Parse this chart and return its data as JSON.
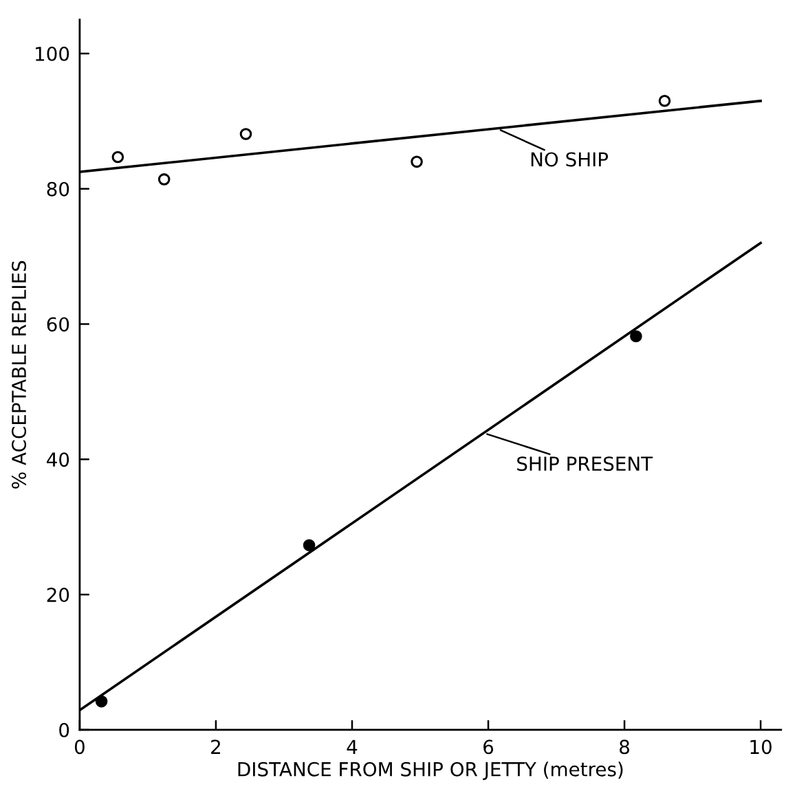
{
  "chart_data": {
    "type": "scatter",
    "xlabel": "DISTANCE FROM SHIP OR JETTY (metres)",
    "ylabel": "% ACCEPTABLE REPLIES",
    "series": [
      {
        "type": "scatter",
        "color": "#000000",
        "marker": "circle",
        "x": [
          0.56,
          1.24,
          2.44,
          4.95,
          8.59
        ],
        "values": [
          84.7,
          81.4,
          88.1,
          84.0,
          93.0
        ]
      },
      {
        "type": "line",
        "color": "#000000",
        "marker": "none",
        "x": [
          0,
          10
        ],
        "values": [
          82.5,
          93.0
        ]
      },
      {
        "type": "scatter",
        "color": "#000000",
        "marker": "circle",
        "x": [
          0.32,
          3.37,
          8.17
        ],
        "values": [
          4.2,
          27.3,
          58.2
        ]
      },
      {
        "type": "line",
        "color": "#000000",
        "marker": "none",
        "x": [
          0,
          10
        ],
        "values": [
          2.9,
          72.0
        ]
      }
    ],
    "annotations": [
      {
        "text": "NO SHIP",
        "x": 6.13,
        "y": 88.9
      },
      {
        "text": "SHIP PRESENT",
        "x": 5.93,
        "y": 43.9
      }
    ],
    "xlim": [
      0,
      10.3
    ],
    "ylim": [
      0,
      105
    ],
    "xticks": [
      0,
      2,
      4,
      6,
      8,
      10
    ],
    "yticks": [
      0,
      20,
      40,
      60,
      80,
      100
    ],
    "grid": false,
    "legend": false,
    "line_style": "solid"
  }
}
